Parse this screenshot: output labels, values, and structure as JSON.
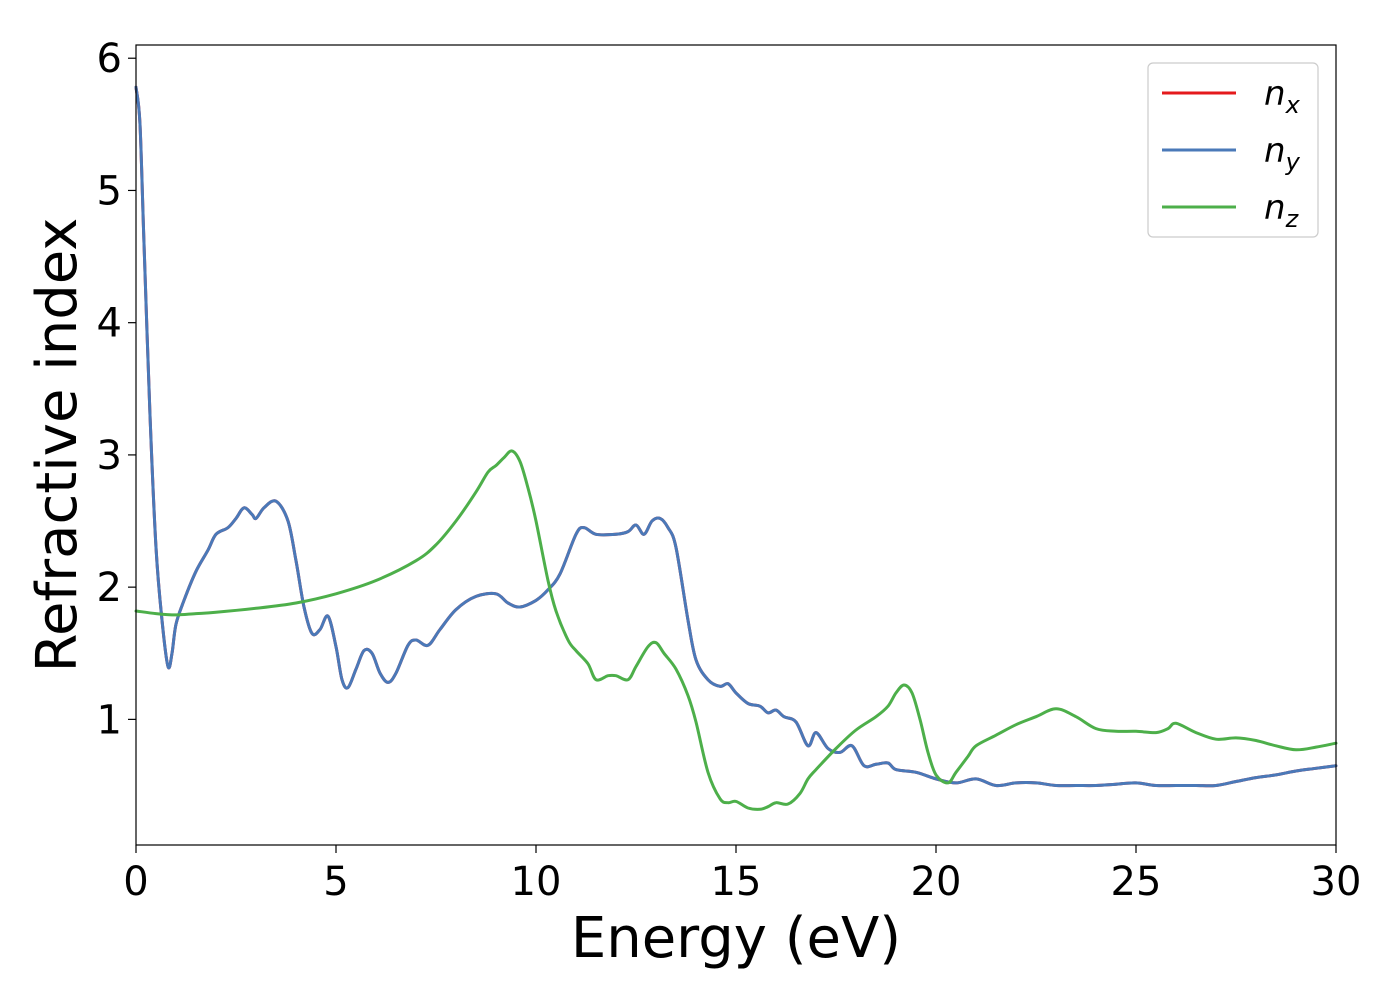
{
  "chart_data": {
    "type": "line",
    "title": "",
    "xlabel": "Energy (eV)",
    "ylabel": "Refractive index",
    "xlim": [
      0,
      30
    ],
    "ylim": [
      0.05,
      6.1
    ],
    "xticks": [
      0,
      5,
      10,
      15,
      20,
      25,
      30
    ],
    "yticks": [
      1,
      2,
      3,
      4,
      5,
      6
    ],
    "xtick_labels": [
      "0",
      "5",
      "10",
      "15",
      "20",
      "25",
      "30"
    ],
    "ytick_labels": [
      "1",
      "2",
      "3",
      "4",
      "5",
      "6"
    ],
    "grid": false,
    "legend_position": "top-right",
    "series": [
      {
        "name": "n_x",
        "label_base": "n",
        "label_sub": "x",
        "color": "#e41a1c",
        "x": [
          0,
          0.1,
          0.2,
          0.35,
          0.5,
          0.65,
          0.8,
          0.9,
          1.0,
          1.2,
          1.5,
          1.8,
          2.0,
          2.3,
          2.5,
          2.7,
          2.9,
          3.0,
          3.2,
          3.5,
          3.8,
          4.0,
          4.2,
          4.4,
          4.6,
          4.8,
          5.0,
          5.15,
          5.3,
          5.5,
          5.7,
          5.9,
          6.1,
          6.3,
          6.5,
          6.8,
          7.0,
          7.3,
          7.6,
          8.0,
          8.5,
          9.0,
          9.3,
          9.6,
          10.0,
          10.3,
          10.6,
          11.0,
          11.2,
          11.5,
          12.0,
          12.3,
          12.5,
          12.7,
          12.9,
          13.1,
          13.3,
          13.5,
          13.8,
          14.0,
          14.3,
          14.6,
          14.8,
          15.0,
          15.3,
          15.6,
          15.8,
          16.0,
          16.2,
          16.5,
          16.8,
          17.0,
          17.3,
          17.6,
          17.9,
          18.2,
          18.5,
          18.8,
          19.0,
          19.5,
          20.0,
          20.5,
          21.0,
          21.5,
          22.0,
          22.5,
          23.0,
          23.5,
          24.0,
          24.5,
          25.0,
          25.5,
          26.0,
          26.5,
          27.0,
          27.5,
          28.0,
          28.5,
          29.0,
          29.5,
          30.0
        ],
        "y": [
          5.78,
          5.5,
          4.6,
          3.3,
          2.3,
          1.75,
          1.4,
          1.5,
          1.72,
          1.9,
          2.12,
          2.28,
          2.4,
          2.45,
          2.52,
          2.6,
          2.55,
          2.52,
          2.6,
          2.65,
          2.5,
          2.2,
          1.85,
          1.65,
          1.68,
          1.78,
          1.55,
          1.3,
          1.24,
          1.38,
          1.52,
          1.5,
          1.35,
          1.28,
          1.35,
          1.56,
          1.6,
          1.56,
          1.68,
          1.83,
          1.93,
          1.95,
          1.88,
          1.85,
          1.9,
          1.98,
          2.1,
          2.4,
          2.45,
          2.4,
          2.4,
          2.42,
          2.47,
          2.4,
          2.5,
          2.52,
          2.45,
          2.3,
          1.75,
          1.45,
          1.3,
          1.25,
          1.27,
          1.2,
          1.12,
          1.1,
          1.05,
          1.07,
          1.02,
          0.98,
          0.8,
          0.9,
          0.78,
          0.75,
          0.8,
          0.65,
          0.66,
          0.67,
          0.62,
          0.6,
          0.55,
          0.52,
          0.55,
          0.5,
          0.52,
          0.52,
          0.5,
          0.5,
          0.5,
          0.51,
          0.52,
          0.5,
          0.5,
          0.5,
          0.5,
          0.53,
          0.56,
          0.58,
          0.61,
          0.63,
          0.65
        ]
      },
      {
        "name": "n_y",
        "label_base": "n",
        "label_sub": "y",
        "color": "#4a79b8",
        "x": [
          0,
          0.1,
          0.2,
          0.35,
          0.5,
          0.65,
          0.8,
          0.9,
          1.0,
          1.2,
          1.5,
          1.8,
          2.0,
          2.3,
          2.5,
          2.7,
          2.9,
          3.0,
          3.2,
          3.5,
          3.8,
          4.0,
          4.2,
          4.4,
          4.6,
          4.8,
          5.0,
          5.15,
          5.3,
          5.5,
          5.7,
          5.9,
          6.1,
          6.3,
          6.5,
          6.8,
          7.0,
          7.3,
          7.6,
          8.0,
          8.5,
          9.0,
          9.3,
          9.6,
          10.0,
          10.3,
          10.6,
          11.0,
          11.2,
          11.5,
          12.0,
          12.3,
          12.5,
          12.7,
          12.9,
          13.1,
          13.3,
          13.5,
          13.8,
          14.0,
          14.3,
          14.6,
          14.8,
          15.0,
          15.3,
          15.6,
          15.8,
          16.0,
          16.2,
          16.5,
          16.8,
          17.0,
          17.3,
          17.6,
          17.9,
          18.2,
          18.5,
          18.8,
          19.0,
          19.5,
          20.0,
          20.5,
          21.0,
          21.5,
          22.0,
          22.5,
          23.0,
          23.5,
          24.0,
          24.5,
          25.0,
          25.5,
          26.0,
          26.5,
          27.0,
          27.5,
          28.0,
          28.5,
          29.0,
          29.5,
          30.0
        ],
        "y": [
          5.78,
          5.5,
          4.6,
          3.3,
          2.3,
          1.75,
          1.4,
          1.5,
          1.72,
          1.9,
          2.12,
          2.28,
          2.4,
          2.45,
          2.52,
          2.6,
          2.55,
          2.52,
          2.6,
          2.65,
          2.5,
          2.2,
          1.85,
          1.65,
          1.68,
          1.78,
          1.55,
          1.3,
          1.24,
          1.38,
          1.52,
          1.5,
          1.35,
          1.28,
          1.35,
          1.56,
          1.6,
          1.56,
          1.68,
          1.83,
          1.93,
          1.95,
          1.88,
          1.85,
          1.9,
          1.98,
          2.1,
          2.4,
          2.45,
          2.4,
          2.4,
          2.42,
          2.47,
          2.4,
          2.5,
          2.52,
          2.45,
          2.3,
          1.75,
          1.45,
          1.3,
          1.25,
          1.27,
          1.2,
          1.12,
          1.1,
          1.05,
          1.07,
          1.02,
          0.98,
          0.8,
          0.9,
          0.78,
          0.75,
          0.8,
          0.65,
          0.66,
          0.67,
          0.62,
          0.6,
          0.55,
          0.52,
          0.55,
          0.5,
          0.52,
          0.52,
          0.5,
          0.5,
          0.5,
          0.51,
          0.52,
          0.5,
          0.5,
          0.5,
          0.5,
          0.53,
          0.56,
          0.58,
          0.61,
          0.63,
          0.65
        ]
      },
      {
        "name": "n_z",
        "label_base": "n",
        "label_sub": "z",
        "color": "#4daf4a",
        "x": [
          0,
          0.5,
          1.0,
          1.5,
          2.0,
          3.0,
          4.0,
          5.0,
          6.0,
          7.0,
          7.5,
          8.0,
          8.5,
          8.8,
          9.0,
          9.2,
          9.4,
          9.6,
          9.8,
          10.0,
          10.3,
          10.5,
          10.8,
          11.0,
          11.3,
          11.5,
          11.8,
          12.0,
          12.3,
          12.5,
          12.8,
          13.0,
          13.2,
          13.5,
          13.8,
          14.0,
          14.3,
          14.6,
          14.8,
          15.0,
          15.3,
          15.6,
          15.8,
          16.0,
          16.3,
          16.6,
          16.8,
          17.0,
          17.5,
          18.0,
          18.5,
          18.8,
          19.0,
          19.2,
          19.4,
          19.6,
          19.8,
          20.0,
          20.3,
          20.5,
          20.8,
          21.0,
          21.5,
          22.0,
          22.5,
          23.0,
          23.5,
          24.0,
          24.5,
          25.0,
          25.5,
          25.8,
          26.0,
          26.5,
          27.0,
          27.5,
          28.0,
          28.5,
          29.0,
          29.5,
          30.0
        ],
        "y": [
          1.82,
          1.8,
          1.79,
          1.8,
          1.81,
          1.84,
          1.88,
          1.95,
          2.05,
          2.2,
          2.32,
          2.5,
          2.72,
          2.87,
          2.92,
          2.98,
          3.03,
          2.95,
          2.75,
          2.5,
          2.05,
          1.82,
          1.6,
          1.52,
          1.42,
          1.3,
          1.33,
          1.33,
          1.3,
          1.4,
          1.55,
          1.58,
          1.5,
          1.38,
          1.18,
          0.98,
          0.6,
          0.4,
          0.37,
          0.38,
          0.33,
          0.32,
          0.34,
          0.37,
          0.36,
          0.44,
          0.55,
          0.62,
          0.78,
          0.92,
          1.02,
          1.1,
          1.2,
          1.26,
          1.2,
          1.0,
          0.75,
          0.58,
          0.52,
          0.6,
          0.72,
          0.8,
          0.88,
          0.96,
          1.02,
          1.08,
          1.02,
          0.93,
          0.91,
          0.91,
          0.9,
          0.93,
          0.97,
          0.9,
          0.85,
          0.86,
          0.84,
          0.8,
          0.77,
          0.79,
          0.82
        ]
      }
    ]
  }
}
